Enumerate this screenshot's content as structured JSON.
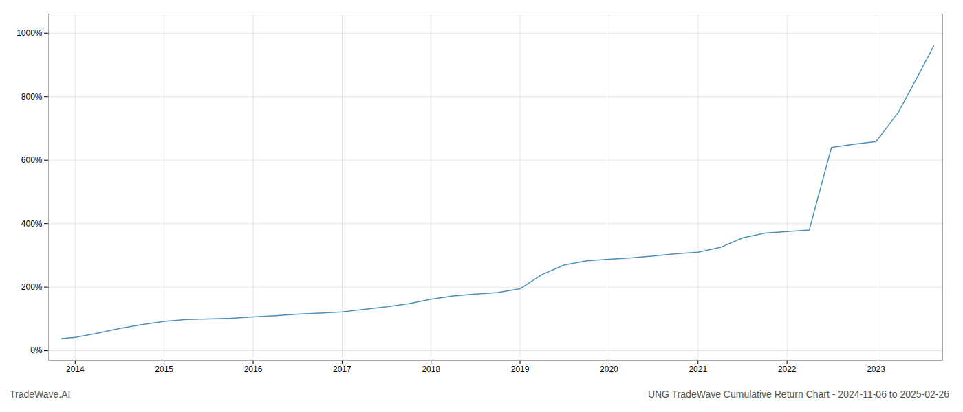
{
  "chart_data": {
    "type": "line",
    "title": "UNG TradeWave Cumulative Return Chart - 2024-11-06 to 2025-02-26",
    "annotations": [
      "TradeWave.AI"
    ],
    "x": [
      2013.85,
      2014.0,
      2014.25,
      2014.5,
      2014.75,
      2015.0,
      2015.25,
      2015.5,
      2015.75,
      2016.0,
      2016.25,
      2016.5,
      2016.75,
      2017.0,
      2017.25,
      2017.5,
      2017.75,
      2018.0,
      2018.25,
      2018.5,
      2018.75,
      2019.0,
      2019.25,
      2019.5,
      2019.75,
      2020.0,
      2020.25,
      2020.5,
      2020.75,
      2021.0,
      2021.25,
      2021.5,
      2021.75,
      2022.0,
      2022.25,
      2022.5,
      2022.75,
      2023.0,
      2023.25,
      2023.5,
      2023.65
    ],
    "values": [
      38,
      42,
      55,
      70,
      82,
      92,
      98,
      100,
      102,
      106,
      110,
      115,
      118,
      122,
      130,
      138,
      148,
      162,
      172,
      178,
      183,
      195,
      240,
      270,
      283,
      288,
      292,
      298,
      305,
      310,
      325,
      355,
      370,
      375,
      380,
      640,
      650,
      658,
      750,
      880,
      960
    ],
    "color": "#4a90b8",
    "xlim": [
      2013.7,
      2023.75
    ],
    "xticks": [
      2014,
      2015,
      2016,
      2017,
      2018,
      2019,
      2020,
      2021,
      2022,
      2023
    ],
    "ylim": [
      -30,
      1060
    ],
    "yticks": [
      {
        "value": 0,
        "label": "0%"
      },
      {
        "value": 200,
        "label": "200%"
      },
      {
        "value": 400,
        "label": "400%"
      },
      {
        "value": 600,
        "label": "600%"
      },
      {
        "value": 800,
        "label": "800%"
      },
      {
        "value": 1000,
        "label": "1000%"
      }
    ],
    "grid": true
  }
}
